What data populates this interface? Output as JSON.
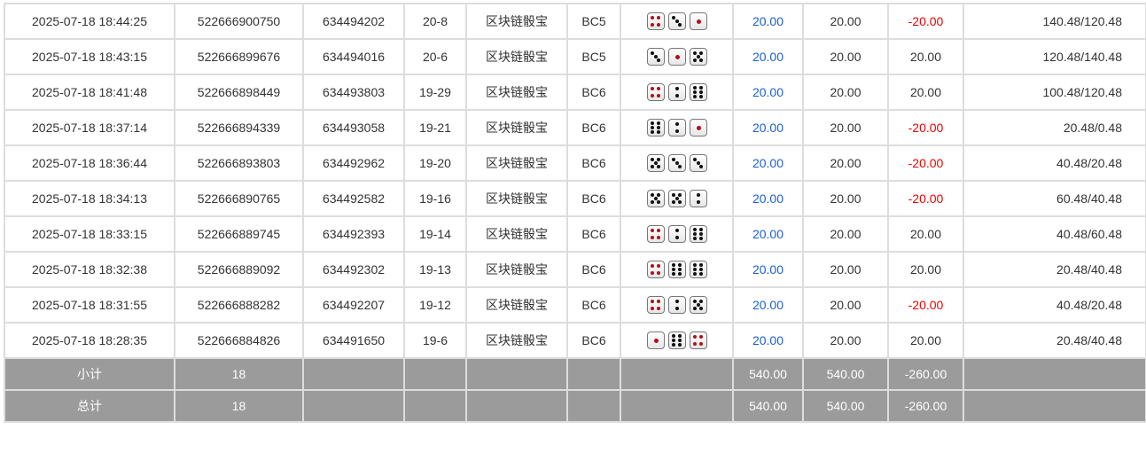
{
  "rows": [
    {
      "time": "2025-07-18 18:44:25",
      "id": "522666900750",
      "issue": "634494202",
      "round": "20-8",
      "game": "区块链骰宝",
      "table": "BC5",
      "dice": [
        4,
        3,
        1
      ],
      "bet": "20.00",
      "valid": "20.00",
      "win": "-20.00",
      "balance": "140.48/120.48"
    },
    {
      "time": "2025-07-18 18:43:15",
      "id": "522666899676",
      "issue": "634494016",
      "round": "20-6",
      "game": "区块链骰宝",
      "table": "BC5",
      "dice": [
        3,
        1,
        5
      ],
      "bet": "20.00",
      "valid": "20.00",
      "win": "20.00",
      "balance": "120.48/140.48"
    },
    {
      "time": "2025-07-18 18:41:48",
      "id": "522666898449",
      "issue": "634493803",
      "round": "19-29",
      "game": "区块链骰宝",
      "table": "BC6",
      "dice": [
        4,
        2,
        6
      ],
      "bet": "20.00",
      "valid": "20.00",
      "win": "20.00",
      "balance": "100.48/120.48"
    },
    {
      "time": "2025-07-18 18:37:14",
      "id": "522666894339",
      "issue": "634493058",
      "round": "19-21",
      "game": "区块链骰宝",
      "table": "BC6",
      "dice": [
        6,
        2,
        1
      ],
      "bet": "20.00",
      "valid": "20.00",
      "win": "-20.00",
      "balance": "20.48/0.48"
    },
    {
      "time": "2025-07-18 18:36:44",
      "id": "522666893803",
      "issue": "634492962",
      "round": "19-20",
      "game": "区块链骰宝",
      "table": "BC6",
      "dice": [
        5,
        3,
        3
      ],
      "bet": "20.00",
      "valid": "20.00",
      "win": "-20.00",
      "balance": "40.48/20.48"
    },
    {
      "time": "2025-07-18 18:34:13",
      "id": "522666890765",
      "issue": "634492582",
      "round": "19-16",
      "game": "区块链骰宝",
      "table": "BC6",
      "dice": [
        5,
        5,
        2
      ],
      "bet": "20.00",
      "valid": "20.00",
      "win": "-20.00",
      "balance": "60.48/40.48"
    },
    {
      "time": "2025-07-18 18:33:15",
      "id": "522666889745",
      "issue": "634492393",
      "round": "19-14",
      "game": "区块链骰宝",
      "table": "BC6",
      "dice": [
        4,
        2,
        6
      ],
      "bet": "20.00",
      "valid": "20.00",
      "win": "20.00",
      "balance": "40.48/60.48"
    },
    {
      "time": "2025-07-18 18:32:38",
      "id": "522666889092",
      "issue": "634492302",
      "round": "19-13",
      "game": "区块链骰宝",
      "table": "BC6",
      "dice": [
        4,
        6,
        6
      ],
      "bet": "20.00",
      "valid": "20.00",
      "win": "20.00",
      "balance": "20.48/40.48"
    },
    {
      "time": "2025-07-18 18:31:55",
      "id": "522666888282",
      "issue": "634492207",
      "round": "19-12",
      "game": "区块链骰宝",
      "table": "BC6",
      "dice": [
        4,
        2,
        5
      ],
      "bet": "20.00",
      "valid": "20.00",
      "win": "-20.00",
      "balance": "40.48/20.48"
    },
    {
      "time": "2025-07-18 18:28:35",
      "id": "522666884826",
      "issue": "634491650",
      "round": "19-6",
      "game": "区块链骰宝",
      "table": "BC6",
      "dice": [
        1,
        6,
        4
      ],
      "bet": "20.00",
      "valid": "20.00",
      "win": "20.00",
      "balance": "20.48/40.48"
    }
  ],
  "subtotal": {
    "label": "小计",
    "count": "18",
    "bet": "540.00",
    "valid": "540.00",
    "win": "-260.00"
  },
  "total": {
    "label": "总计",
    "count": "18",
    "bet": "540.00",
    "valid": "540.00",
    "win": "-260.00"
  },
  "colors": {
    "bet": "#1a5fd6",
    "loss": "#e00000",
    "pip_red": "#b0101a",
    "summary_bg": "#9b9b9b"
  }
}
